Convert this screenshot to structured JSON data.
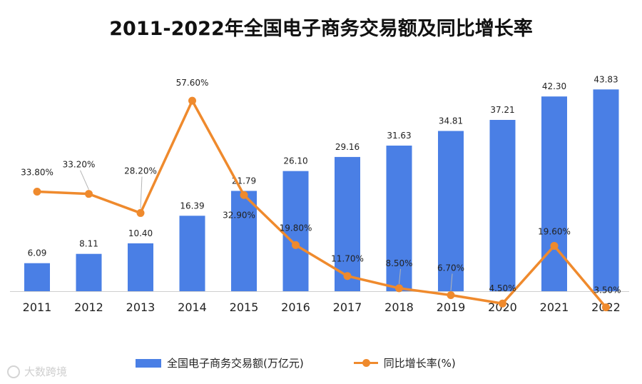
{
  "chart_data": {
    "type": "bar",
    "title": "2011-2022年全国电子商务交易额及同比增长率",
    "categories": [
      "2011",
      "2012",
      "2013",
      "2014",
      "2015",
      "2016",
      "2017",
      "2018",
      "2019",
      "2020",
      "2021",
      "2022"
    ],
    "series": [
      {
        "name": "全国电子商务交易额(万亿元)",
        "type": "bar",
        "color": "#4a7fe5",
        "values": [
          6.09,
          8.11,
          10.4,
          16.39,
          21.79,
          26.1,
          29.16,
          31.63,
          34.81,
          37.21,
          42.3,
          43.83
        ],
        "labels": [
          "6.09",
          "8.11",
          "10.40",
          "16.39",
          "21.79",
          "26.10",
          "29.16",
          "31.63",
          "34.81",
          "37.21",
          "42.30",
          "43.83"
        ]
      },
      {
        "name": "同比增长率(%)",
        "type": "line",
        "color": "#ef8a2d",
        "values": [
          33.8,
          33.2,
          28.2,
          57.6,
          32.9,
          19.8,
          11.7,
          8.5,
          6.7,
          4.5,
          19.6,
          3.5
        ],
        "labels": [
          "33.80%",
          "33.20%",
          "28.20%",
          "57.60%",
          "32.90%",
          "19.80%",
          "11.70%",
          "8.50%",
          "6.70%",
          "4.50%",
          "19.60%",
          "3.50%"
        ]
      }
    ],
    "legend_position": "bottom",
    "grid": false
  },
  "watermark": {
    "text": "大数跨境"
  }
}
